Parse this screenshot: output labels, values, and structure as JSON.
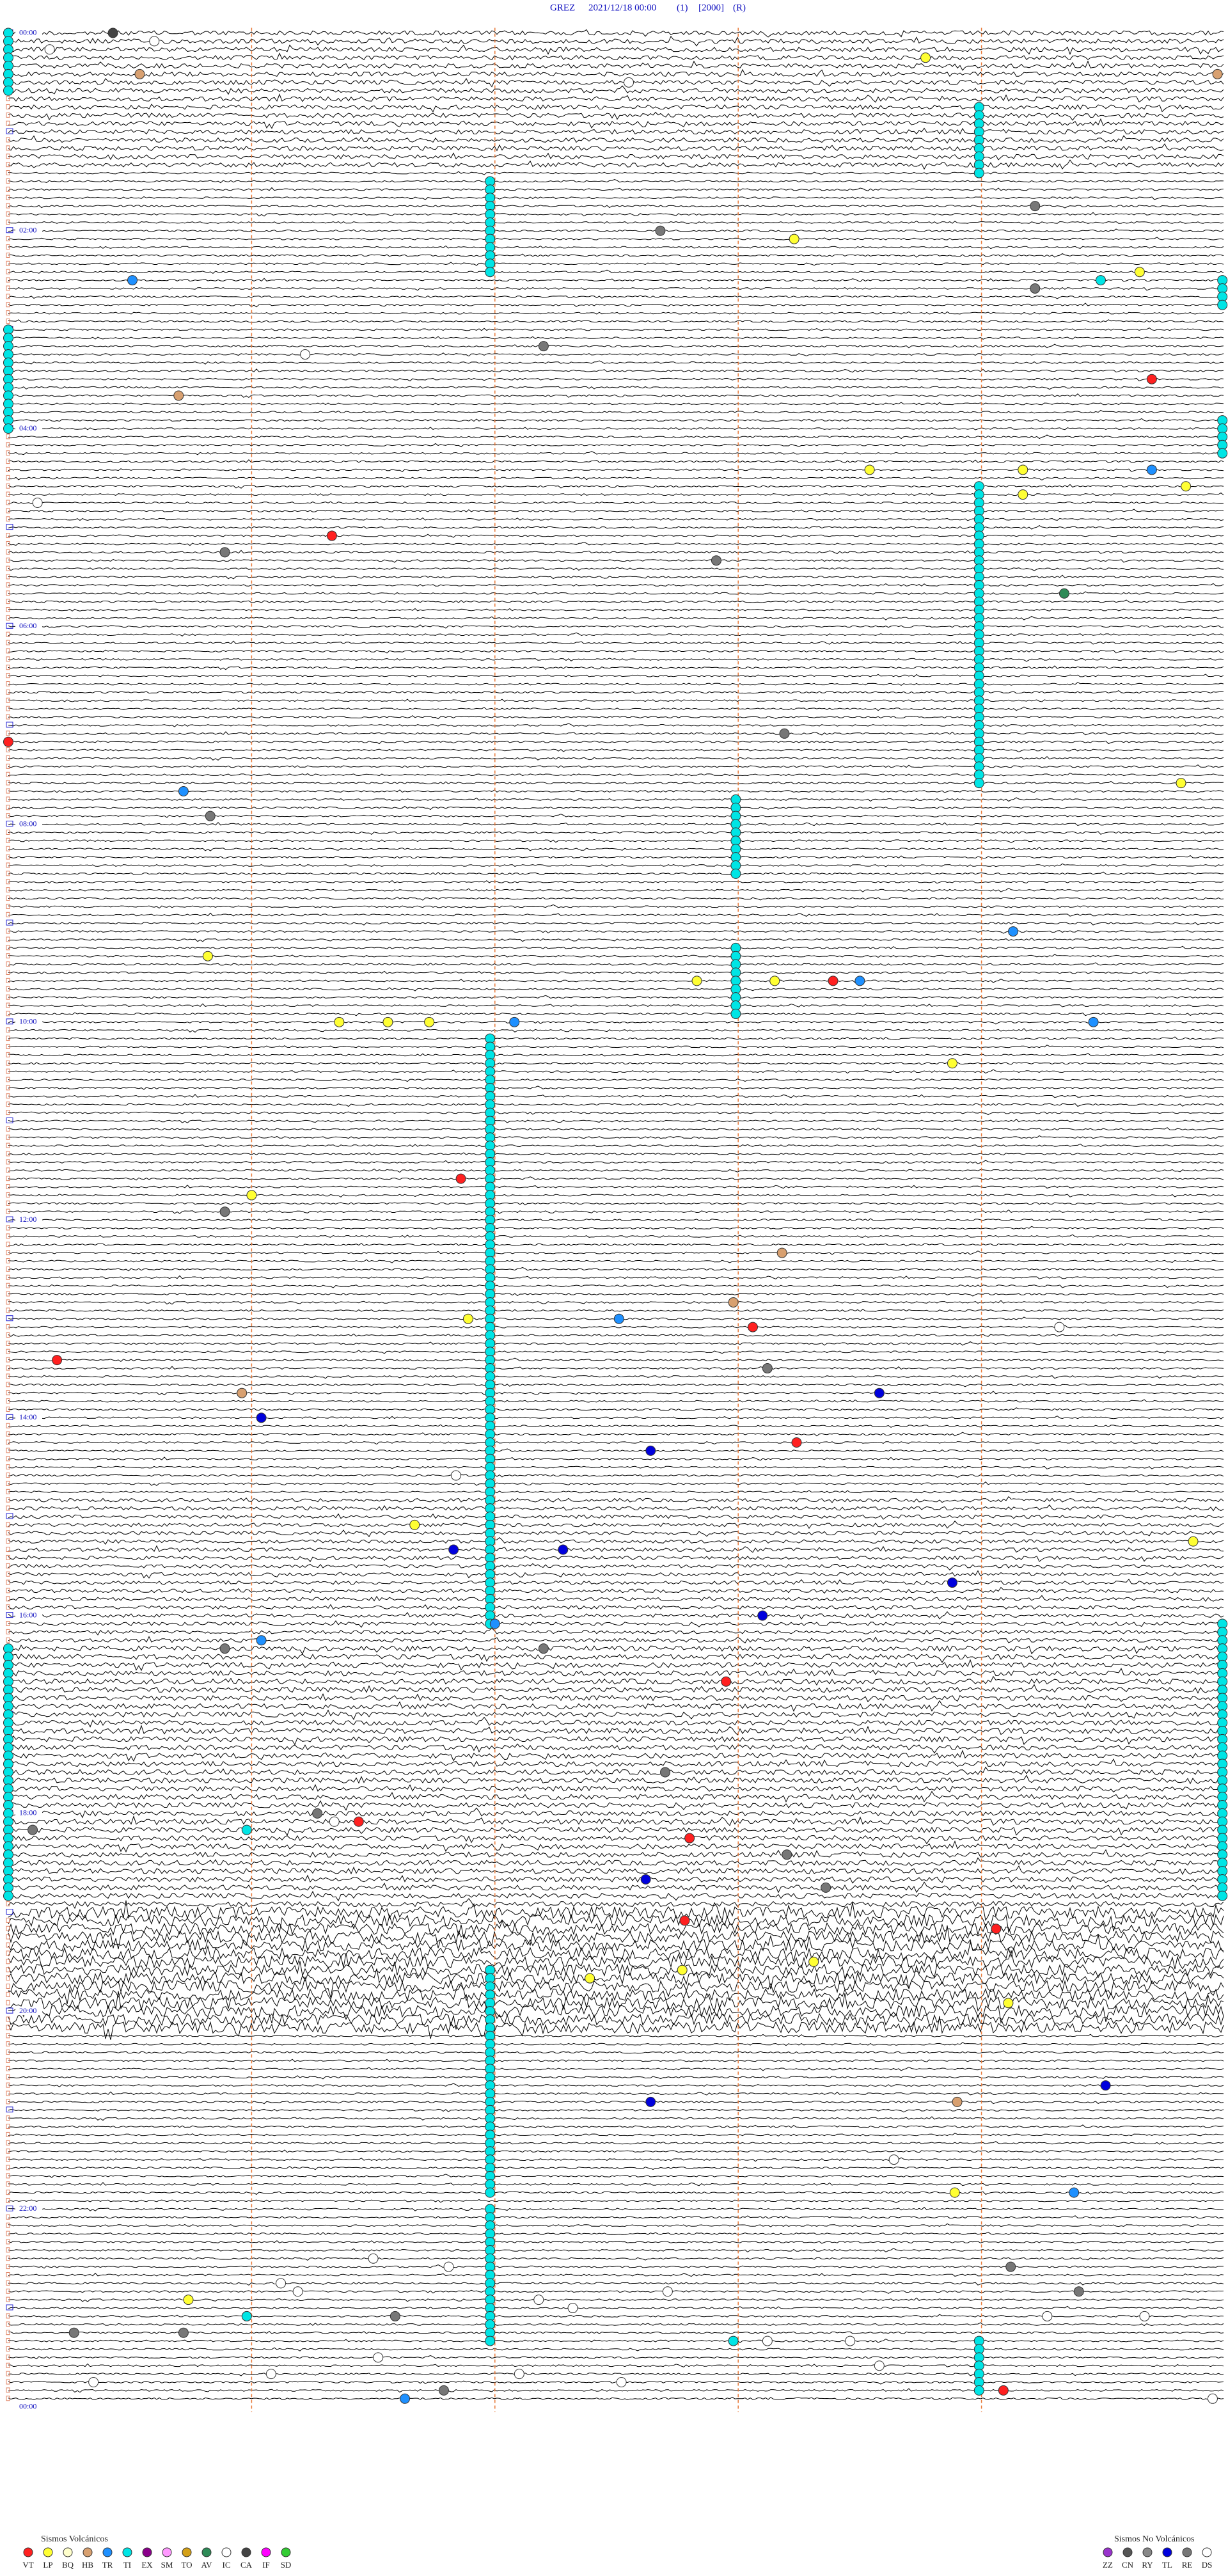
{
  "header": {
    "station": "GREZ",
    "datetime": "2021/12/18 00:00",
    "channel": "(1)",
    "gain": "[2000]",
    "mode": "(R)"
  },
  "time_labels": [
    "00:00",
    "02:00",
    "04:00",
    "06:00",
    "08:00",
    "10:00",
    "12:00",
    "14:00",
    "16:00",
    "18:00",
    "20:00",
    "22:00",
    "00:00"
  ],
  "legend": {
    "volcanic": {
      "title": "Sismos Volcánicos",
      "items": [
        {
          "code": "VT",
          "color": "#ff2020"
        },
        {
          "code": "LP",
          "color": "#ffff33"
        },
        {
          "code": "BQ",
          "color": "#ffffcc"
        },
        {
          "code": "HB",
          "color": "#d8a070"
        },
        {
          "code": "TR",
          "color": "#1e90ff"
        },
        {
          "code": "TI",
          "color": "#00e5e5"
        },
        {
          "code": "EX",
          "color": "#8b008b"
        },
        {
          "code": "SM",
          "color": "#ff99ff"
        },
        {
          "code": "TO",
          "color": "#d4a017"
        },
        {
          "code": "AV",
          "color": "#2e8b57"
        },
        {
          "code": "IC",
          "color": "#ffffff"
        },
        {
          "code": "CA",
          "color": "#444444"
        },
        {
          "code": "IF",
          "color": "#ff00ff"
        },
        {
          "code": "SD",
          "color": "#33cc33"
        }
      ]
    },
    "non_volcanic": {
      "title": "Sismos No Volcánicos",
      "items": [
        {
          "code": "ZZ",
          "color": "#9933cc"
        },
        {
          "code": "CN",
          "color": "#555555"
        },
        {
          "code": "RY",
          "color": "#888888"
        },
        {
          "code": "TL",
          "color": "#0000dd"
        },
        {
          "code": "RE",
          "color": "#777777"
        },
        {
          "code": "DS",
          "color": "#ffffff"
        }
      ]
    }
  },
  "runs": [
    [
      9,
      17,
      3.99,
      "TI"
    ],
    [
      18,
      29,
      1.98,
      "TI"
    ],
    [
      55,
      91,
      3.99,
      "TI"
    ],
    [
      93,
      102,
      2.99,
      "TI"
    ],
    [
      111,
      119,
      2.99,
      "TI"
    ],
    [
      122,
      193,
      1.98,
      "TI"
    ],
    [
      235,
      262,
      1.98,
      "TI"
    ],
    [
      264,
      280,
      1.98,
      "TI"
    ],
    [
      280,
      286,
      3.99,
      "TI"
    ],
    [
      30,
      33,
      4.99,
      "TI"
    ],
    [
      47,
      51,
      4.99,
      "TI"
    ],
    [
      193,
      226,
      4.99,
      "TI"
    ],
    [
      196,
      226,
      0,
      "TI"
    ],
    [
      36,
      48,
      0,
      "TI"
    ],
    [
      0,
      7,
      0,
      "TI"
    ]
  ],
  "events": [
    [
      0,
      0.43,
      "CA"
    ],
    [
      1,
      0.6,
      "DS"
    ],
    [
      2,
      0.17,
      "DS"
    ],
    [
      3,
      3.77,
      "LP"
    ],
    [
      5,
      4.97,
      "HB"
    ],
    [
      5,
      0.54,
      "HB"
    ],
    [
      6,
      2.55,
      "DS"
    ],
    [
      21,
      4.22,
      "RE"
    ],
    [
      24,
      2.68,
      "RE"
    ],
    [
      25,
      3.23,
      "LP"
    ],
    [
      30,
      0.51,
      "TR"
    ],
    [
      30,
      4.49,
      "TI"
    ],
    [
      29,
      4.65,
      "LP"
    ],
    [
      31,
      4.22,
      "RE"
    ],
    [
      38,
      2.2,
      "RE"
    ],
    [
      39,
      1.22,
      "DS"
    ],
    [
      42,
      4.7,
      "VT"
    ],
    [
      44,
      0.7,
      "HB"
    ],
    [
      53,
      3.54,
      "LP"
    ],
    [
      53,
      4.17,
      "LP"
    ],
    [
      53,
      4.7,
      "TR"
    ],
    [
      55,
      4.84,
      "LP"
    ],
    [
      56,
      4.17,
      "LP"
    ],
    [
      57,
      0.12,
      "DS"
    ],
    [
      61,
      1.33,
      "VT"
    ],
    [
      63,
      0.89,
      "RE"
    ],
    [
      64,
      2.91,
      "RE"
    ],
    [
      68,
      4.34,
      "AV"
    ],
    [
      86,
      0,
      "VT"
    ],
    [
      85,
      3.19,
      "RE"
    ],
    [
      91,
      4.82,
      "LP"
    ],
    [
      92,
      0.72,
      "TR"
    ],
    [
      95,
      0.83,
      "RE"
    ],
    [
      109,
      4.13,
      "TR"
    ],
    [
      112,
      0.82,
      "LP"
    ],
    [
      115,
      2.83,
      "LP"
    ],
    [
      115,
      3.15,
      "LP"
    ],
    [
      115,
      3.39,
      "VT"
    ],
    [
      115,
      3.5,
      "TR"
    ],
    [
      120,
      1.36,
      "LP"
    ],
    [
      120,
      1.56,
      "LP"
    ],
    [
      120,
      1.73,
      "LP"
    ],
    [
      120,
      2.08,
      "TR"
    ],
    [
      120,
      4.46,
      "TR"
    ],
    [
      125,
      3.88,
      "LP"
    ],
    [
      139,
      1.86,
      "VT"
    ],
    [
      141,
      1.0,
      "LP"
    ],
    [
      143,
      0.89,
      "RE"
    ],
    [
      148,
      3.18,
      "HB"
    ],
    [
      154,
      2.98,
      "HB"
    ],
    [
      156,
      1.89,
      "LP"
    ],
    [
      156,
      2.51,
      "TR"
    ],
    [
      157,
      3.06,
      "VT"
    ],
    [
      157,
      4.32,
      "DS"
    ],
    [
      161,
      0.2,
      "VT"
    ],
    [
      162,
      3.12,
      "RE"
    ],
    [
      165,
      3.58,
      "TL"
    ],
    [
      165,
      0.96,
      "HB"
    ],
    [
      168,
      1.04,
      "TL"
    ],
    [
      171,
      3.24,
      "VT"
    ],
    [
      172,
      2.64,
      "TL"
    ],
    [
      175,
      1.84,
      "DS"
    ],
    [
      181,
      1.67,
      "LP"
    ],
    [
      183,
      4.87,
      "LP"
    ],
    [
      184,
      1.83,
      "TL"
    ],
    [
      184,
      2.28,
      "TL"
    ],
    [
      188,
      3.88,
      "TL"
    ],
    [
      192,
      3.1,
      "TL"
    ],
    [
      193,
      2.0,
      "TR"
    ],
    [
      196,
      0.89,
      "RE"
    ],
    [
      195,
      1.04,
      "TR"
    ],
    [
      196,
      2.2,
      "RE"
    ],
    [
      200,
      2.95,
      "VT"
    ],
    [
      211,
      2.7,
      "RE"
    ],
    [
      216,
      1.27,
      "RE"
    ],
    [
      217,
      1.34,
      "DS"
    ],
    [
      217,
      1.44,
      "VT"
    ],
    [
      218,
      0.1,
      "RE"
    ],
    [
      218,
      0.98,
      "TI"
    ],
    [
      219,
      2.8,
      "VT"
    ],
    [
      221,
      3.2,
      "RE"
    ],
    [
      224,
      2.62,
      "TL"
    ],
    [
      225,
      3.36,
      "RE"
    ],
    [
      229,
      2.78,
      "VT"
    ],
    [
      230,
      4.06,
      "VT"
    ],
    [
      236,
      2.39,
      "LP"
    ],
    [
      235,
      2.77,
      "LP"
    ],
    [
      234,
      3.31,
      "LP"
    ],
    [
      239,
      4.11,
      "LP"
    ],
    [
      251,
      2.64,
      "TL"
    ],
    [
      251,
      3.9,
      "HB"
    ],
    [
      249,
      4.51,
      "TL"
    ],
    [
      258,
      3.64,
      "DS"
    ],
    [
      262,
      3.89,
      "LP"
    ],
    [
      262,
      4.38,
      "TR"
    ],
    [
      271,
      4.12,
      "RE"
    ],
    [
      270,
      1.5,
      "DS"
    ],
    [
      271,
      1.81,
      "DS"
    ],
    [
      273,
      1.12,
      "DS"
    ],
    [
      274,
      1.19,
      "DS"
    ],
    [
      274,
      4.4,
      "RE"
    ],
    [
      275,
      0.74,
      "LP"
    ],
    [
      275,
      2.18,
      "DS"
    ],
    [
      276,
      2.32,
      "DS"
    ],
    [
      274,
      2.71,
      "DS"
    ],
    [
      277,
      1.59,
      "RE"
    ],
    [
      277,
      0.98,
      "TI"
    ],
    [
      277,
      4.67,
      "DS"
    ],
    [
      277,
      4.27,
      "DS"
    ],
    [
      279,
      0.27,
      "RE"
    ],
    [
      279,
      0.72,
      "RE"
    ],
    [
      280,
      2.98,
      "TI"
    ],
    [
      280,
      3.12,
      "DS"
    ],
    [
      280,
      3.46,
      "DS"
    ],
    [
      282,
      1.52,
      "DS"
    ],
    [
      283,
      3.58,
      "DS"
    ],
    [
      284,
      1.08,
      "DS"
    ],
    [
      284,
      2.1,
      "DS"
    ],
    [
      285,
      0.35,
      "DS"
    ],
    [
      285,
      2.52,
      "DS"
    ],
    [
      286,
      1.79,
      "RE"
    ],
    [
      286,
      4.09,
      "VT"
    ],
    [
      287,
      1.63,
      "TR"
    ],
    [
      287,
      4.95,
      "DS"
    ]
  ]
}
